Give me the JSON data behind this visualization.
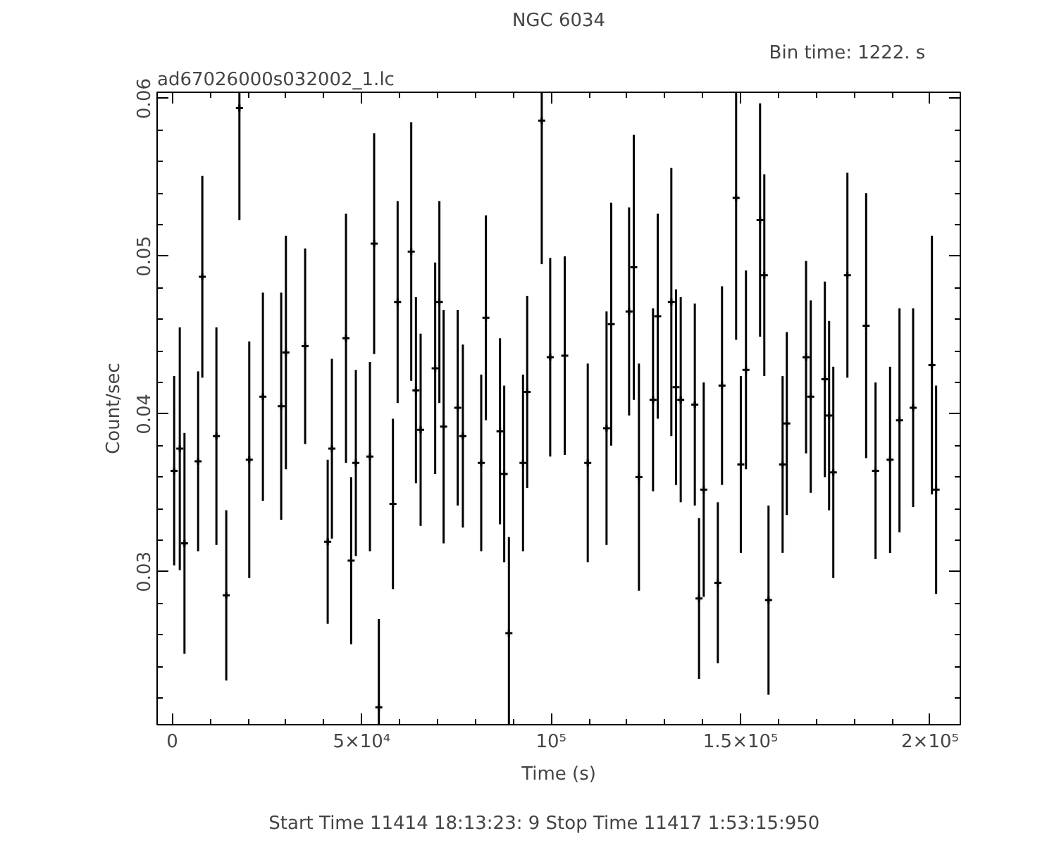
{
  "chart_data": {
    "type": "scatter",
    "title": "NGC 6034",
    "xlabel": "Time (s)",
    "ylabel": "Count/sec",
    "annotations": [
      "ad67026000s032002_1.lc",
      "Bin time:    1222.    s",
      "Start Time 11414 18:13:23:  9    Stop Time 11417  1:53:15:950"
    ],
    "color": "#000000",
    "marker": "cross",
    "x": [
      500,
      1980,
      3220,
      6820,
      7930,
      11650,
      14250,
      17720,
      20320,
      23920,
      28750,
      29990,
      35070,
      41020,
      42130,
      45850,
      47210,
      48450,
      52170,
      53280,
      54520,
      58240,
      59480,
      63070,
      64310,
      65550,
      69390,
      70500,
      71620,
      75340,
      76700,
      81540,
      82780,
      86500,
      87610,
      88850,
      92570,
      93680,
      97520,
      99750,
      103590,
      109660,
      114620,
      115860,
      120570,
      121810,
      123170,
      126890,
      128130,
      131720,
      132960,
      134200,
      137920,
      139030,
      140270,
      143990,
      145100,
      148820,
      150060,
      151420,
      155140,
      156260,
      157370,
      161090,
      162200,
      167280,
      168520,
      172240,
      173360,
      174470,
      178190,
      183140,
      185620,
      189460,
      191940,
      195540,
      200500,
      201610
    ],
    "values": [
      0.0364,
      0.0378,
      0.0318,
      0.037,
      0.0487,
      0.0386,
      0.0285,
      0.0594,
      0.0371,
      0.0411,
      0.0405,
      0.0439,
      0.0443,
      0.0319,
      0.0378,
      0.0448,
      0.0307,
      0.0369,
      0.0373,
      0.0508,
      0.0214,
      0.0343,
      0.0471,
      0.0503,
      0.0415,
      0.039,
      0.0429,
      0.0471,
      0.0392,
      0.0404,
      0.0386,
      0.0369,
      0.0461,
      0.0389,
      0.0362,
      0.0261,
      0.0369,
      0.0414,
      0.0586,
      0.0436,
      0.0437,
      0.0369,
      0.0391,
      0.0457,
      0.0465,
      0.0493,
      0.036,
      0.0409,
      0.0462,
      0.0471,
      0.0417,
      0.0409,
      0.0406,
      0.0283,
      0.0352,
      0.0293,
      0.0418,
      0.0537,
      0.0368,
      0.0428,
      0.0523,
      0.0488,
      0.0282,
      0.0368,
      0.0394,
      0.0436,
      0.0411,
      0.0422,
      0.0399,
      0.0363,
      0.0488,
      0.0456,
      0.0364,
      0.0371,
      0.0396,
      0.0404,
      0.0431,
      0.0352
    ],
    "errors": [
      0.006,
      0.0077,
      0.007,
      0.0057,
      0.0064,
      0.0069,
      0.0054,
      [
        0.0523,
        0.0604
      ],
      0.0075,
      0.0066,
      0.0072,
      0.0074,
      0.0062,
      0.0052,
      0.0057,
      0.0079,
      0.0053,
      0.0059,
      0.006,
      0.007,
      [
        0.0203,
        0.027
      ],
      0.0054,
      0.0064,
      0.0082,
      0.0059,
      0.0061,
      0.0067,
      0.0064,
      0.0074,
      0.0062,
      0.0058,
      0.0056,
      0.0065,
      0.0059,
      0.0056,
      [
        0.0203,
        0.0322
      ],
      0.0056,
      0.0061,
      [
        0.0495,
        0.0604
      ],
      0.0063,
      0.0063,
      0.0063,
      0.0074,
      0.0077,
      0.0066,
      0.0084,
      0.0072,
      0.0058,
      0.0065,
      0.0085,
      0.0062,
      0.0065,
      0.0064,
      0.0051,
      0.0068,
      0.0051,
      0.0063,
      [
        0.0447,
        0.0604
      ],
      0.0056,
      0.0063,
      0.0074,
      0.0064,
      0.006,
      0.0056,
      0.0058,
      0.0061,
      0.0061,
      0.0062,
      0.006,
      0.0067,
      0.0065,
      0.0084,
      0.0056,
      0.0059,
      0.0071,
      0.0063,
      0.0082,
      0.0066
    ],
    "xlim": [
      -4000,
      208000
    ],
    "ylim": [
      0.0203,
      0.0604
    ],
    "xticks": [
      0,
      {
        "value": 50000,
        "label": "5×10⁴"
      },
      {
        "value": 100000,
        "label": "10⁵"
      },
      {
        "value": 150000,
        "label": "1.5×10⁵"
      },
      {
        "value": 200000,
        "label": "2×10⁵"
      }
    ],
    "yticks": [
      {
        "value": 0.03,
        "label": "0.03"
      },
      {
        "value": 0.04,
        "label": "0.04"
      },
      {
        "value": 0.05,
        "label": "0.05"
      },
      {
        "value": 0.06,
        "label": "0.06"
      }
    ]
  }
}
